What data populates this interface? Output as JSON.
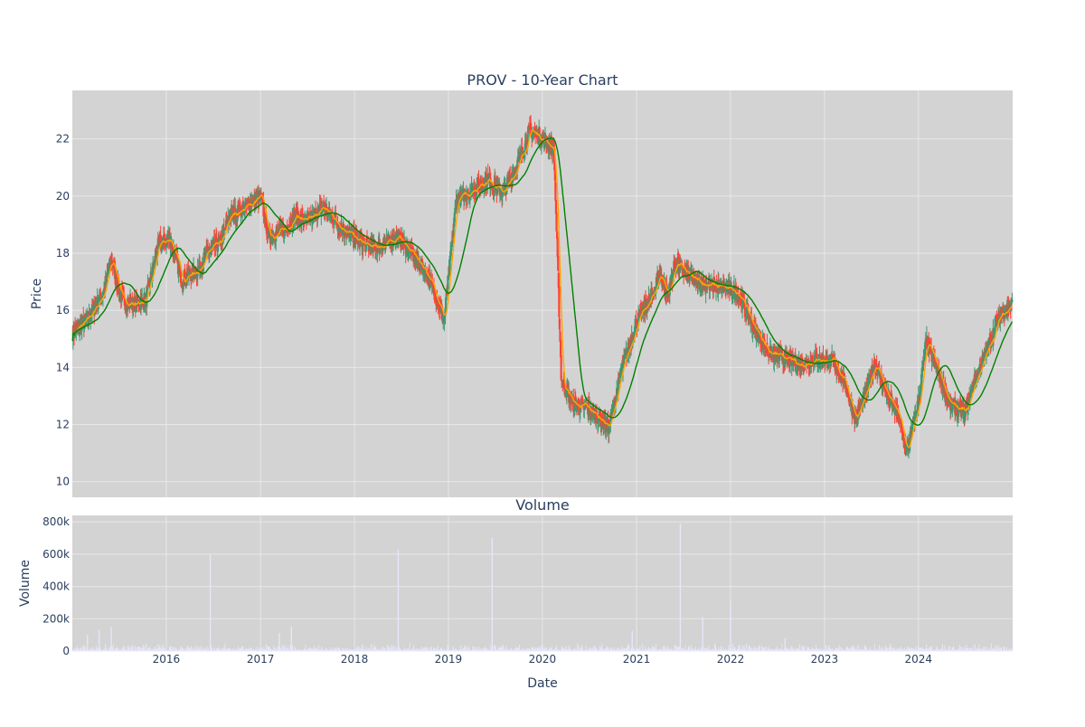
{
  "chart_data": [
    {
      "type": "candlestick",
      "title": "PROV - 10-Year Chart",
      "xlabel": "",
      "ylabel": "Price",
      "xlim": [
        "2015-01-01",
        "2025-01-01"
      ],
      "ylim": [
        9.45,
        23.7
      ],
      "y_ticks": [
        10,
        12,
        14,
        16,
        18,
        20,
        22
      ],
      "x_ticks": [
        "2016",
        "2017",
        "2018",
        "2019",
        "2020",
        "2021",
        "2022",
        "2023",
        "2024"
      ],
      "grid": true,
      "legend": "none",
      "colors": {
        "background": "#d3d3d3",
        "increasing": "#3d9970",
        "decreasing": "#ff4136",
        "ma_short": "#ffa500",
        "ma_long": "#008000"
      },
      "close_anchors": [
        [
          "2015-01-02",
          15.2
        ],
        [
          "2015-03-01",
          15.7
        ],
        [
          "2015-05-01",
          16.6
        ],
        [
          "2015-06-01",
          17.8
        ],
        [
          "2015-07-15",
          16.3
        ],
        [
          "2015-09-01",
          16.2
        ],
        [
          "2015-10-15",
          16.4
        ],
        [
          "2015-12-01",
          18.3
        ],
        [
          "2016-01-15",
          18.5
        ],
        [
          "2016-03-01",
          17.1
        ],
        [
          "2016-05-01",
          17.4
        ],
        [
          "2016-06-15",
          18.1
        ],
        [
          "2016-08-01",
          18.4
        ],
        [
          "2016-09-01",
          19.3
        ],
        [
          "2016-11-01",
          19.6
        ],
        [
          "2017-01-01",
          20.0
        ],
        [
          "2017-02-01",
          18.6
        ],
        [
          "2017-04-01",
          18.8
        ],
        [
          "2017-05-15",
          19.3
        ],
        [
          "2017-07-01",
          19.1
        ],
        [
          "2017-09-01",
          19.6
        ],
        [
          "2017-11-01",
          19.0
        ],
        [
          "2018-01-01",
          18.5
        ],
        [
          "2018-03-01",
          18.2
        ],
        [
          "2018-05-01",
          18.3
        ],
        [
          "2018-06-15",
          18.6
        ],
        [
          "2018-08-01",
          18.1
        ],
        [
          "2018-10-01",
          17.4
        ],
        [
          "2018-11-15",
          16.5
        ],
        [
          "2018-12-15",
          15.6
        ],
        [
          "2019-02-01",
          19.9
        ],
        [
          "2019-04-01",
          20.2
        ],
        [
          "2019-06-01",
          20.6
        ],
        [
          "2019-08-01",
          20.1
        ],
        [
          "2019-10-01",
          21.2
        ],
        [
          "2019-11-15",
          22.3
        ],
        [
          "2020-01-15",
          21.9
        ],
        [
          "2020-02-15",
          21.6
        ],
        [
          "2020-03-15",
          13.5
        ],
        [
          "2020-05-01",
          12.7
        ],
        [
          "2020-06-15",
          12.6
        ],
        [
          "2020-08-01",
          12.3
        ],
        [
          "2020-09-15",
          11.9
        ],
        [
          "2020-11-01",
          13.8
        ],
        [
          "2021-01-01",
          15.6
        ],
        [
          "2021-03-01",
          16.5
        ],
        [
          "2021-04-01",
          17.3
        ],
        [
          "2021-05-01",
          16.5
        ],
        [
          "2021-06-01",
          17.7
        ],
        [
          "2021-08-01",
          17.1
        ],
        [
          "2021-10-01",
          16.9
        ],
        [
          "2021-12-01",
          16.8
        ],
        [
          "2022-02-01",
          16.6
        ],
        [
          "2022-04-01",
          15.4
        ],
        [
          "2022-06-01",
          14.5
        ],
        [
          "2022-08-01",
          14.3
        ],
        [
          "2022-10-01",
          14.1
        ],
        [
          "2022-12-01",
          14.3
        ],
        [
          "2023-02-01",
          14.2
        ],
        [
          "2023-03-15",
          13.6
        ],
        [
          "2023-05-01",
          12.2
        ],
        [
          "2023-06-15",
          13.2
        ],
        [
          "2023-07-15",
          14.2
        ],
        [
          "2023-09-01",
          13.0
        ],
        [
          "2023-10-15",
          12.3
        ],
        [
          "2023-11-15",
          11.0
        ],
        [
          "2024-01-01",
          12.8
        ],
        [
          "2024-02-01",
          14.9
        ],
        [
          "2024-03-15",
          13.9
        ],
        [
          "2024-05-01",
          12.7
        ],
        [
          "2024-07-01",
          12.4
        ],
        [
          "2024-08-01",
          13.4
        ],
        [
          "2024-10-01",
          14.8
        ],
        [
          "2024-11-15",
          15.9
        ],
        [
          "2024-12-31",
          16.2
        ]
      ]
    },
    {
      "type": "bar",
      "title": "Volume",
      "xlabel": "Date",
      "ylabel": "Volume",
      "xlim": [
        "2015-01-01",
        "2025-01-01"
      ],
      "ylim": [
        0,
        840000
      ],
      "y_ticks": [
        0,
        200000,
        400000,
        600000,
        800000
      ],
      "y_tick_labels": [
        "0",
        "200k",
        "400k",
        "600k",
        "800k"
      ],
      "x_ticks": [
        "2016",
        "2017",
        "2018",
        "2019",
        "2020",
        "2021",
        "2022",
        "2023",
        "2024"
      ],
      "grid": true,
      "bar_color": "#e6e6fa",
      "spikes": [
        [
          "2015-03-01",
          100000
        ],
        [
          "2015-04-15",
          130000
        ],
        [
          "2015-06-01",
          150000
        ],
        [
          "2016-06-20",
          600000
        ],
        [
          "2017-03-15",
          110000
        ],
        [
          "2017-05-01",
          150000
        ],
        [
          "2018-06-20",
          630000
        ],
        [
          "2019-06-20",
          700000
        ],
        [
          "2020-12-15",
          125000
        ],
        [
          "2021-06-20",
          790000
        ],
        [
          "2021-09-15",
          210000
        ],
        [
          "2022-01-01",
          310000
        ],
        [
          "2022-08-01",
          80000
        ]
      ]
    }
  ]
}
